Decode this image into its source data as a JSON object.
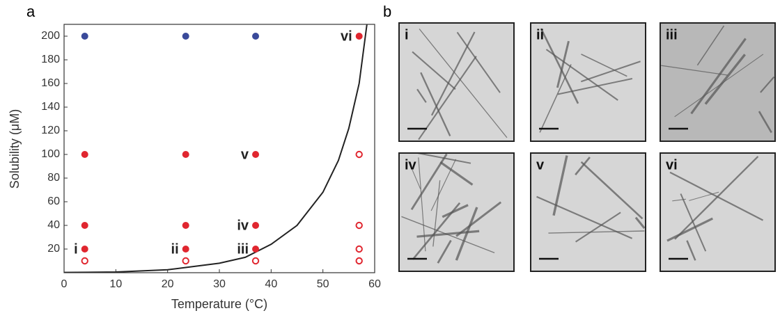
{
  "panel_labels": [
    "a",
    "b"
  ],
  "chart_data": {
    "type": "scatter",
    "xlabel": "Temperature (°C)",
    "ylabel": "Solubility (μM)",
    "xlim": [
      0,
      60
    ],
    "ylim": [
      0,
      210
    ],
    "xticks": [
      0,
      10,
      20,
      30,
      40,
      50,
      60
    ],
    "yticks": [
      20,
      40,
      60,
      80,
      100,
      120,
      140,
      160,
      180,
      200
    ],
    "series": [
      {
        "color": "#3a4a9a",
        "marker": "filled",
        "x": [
          4,
          23.5,
          37
        ],
        "values": [
          200,
          200,
          200
        ]
      },
      {
        "color": "#e0262f",
        "marker": "filled",
        "x": [
          57,
          4,
          23.5,
          37,
          4,
          23.5,
          37,
          4,
          23.5,
          37
        ],
        "values": [
          200,
          100,
          100,
          100,
          40,
          40,
          40,
          20,
          20,
          20
        ],
        "point_labels": [
          "vi",
          null,
          null,
          "v",
          null,
          null,
          "iv",
          "i",
          "ii",
          "iii"
        ]
      },
      {
        "color": "#e0262f",
        "marker": "open",
        "x": [
          57,
          57,
          57,
          4,
          23.5,
          37,
          57
        ],
        "values": [
          100,
          40,
          20,
          10,
          10,
          10,
          10
        ]
      }
    ],
    "curve": {
      "color": "#222222",
      "x": [
        0,
        10,
        20,
        30,
        35,
        40,
        45,
        50,
        53,
        55,
        57,
        58.5
      ],
      "values": [
        0.2,
        0.6,
        2.5,
        8,
        13,
        24,
        40,
        68,
        95,
        122,
        160,
        210
      ]
    }
  },
  "micrographs": [
    "i",
    "ii",
    "iii",
    "iv",
    "v",
    "vi"
  ]
}
